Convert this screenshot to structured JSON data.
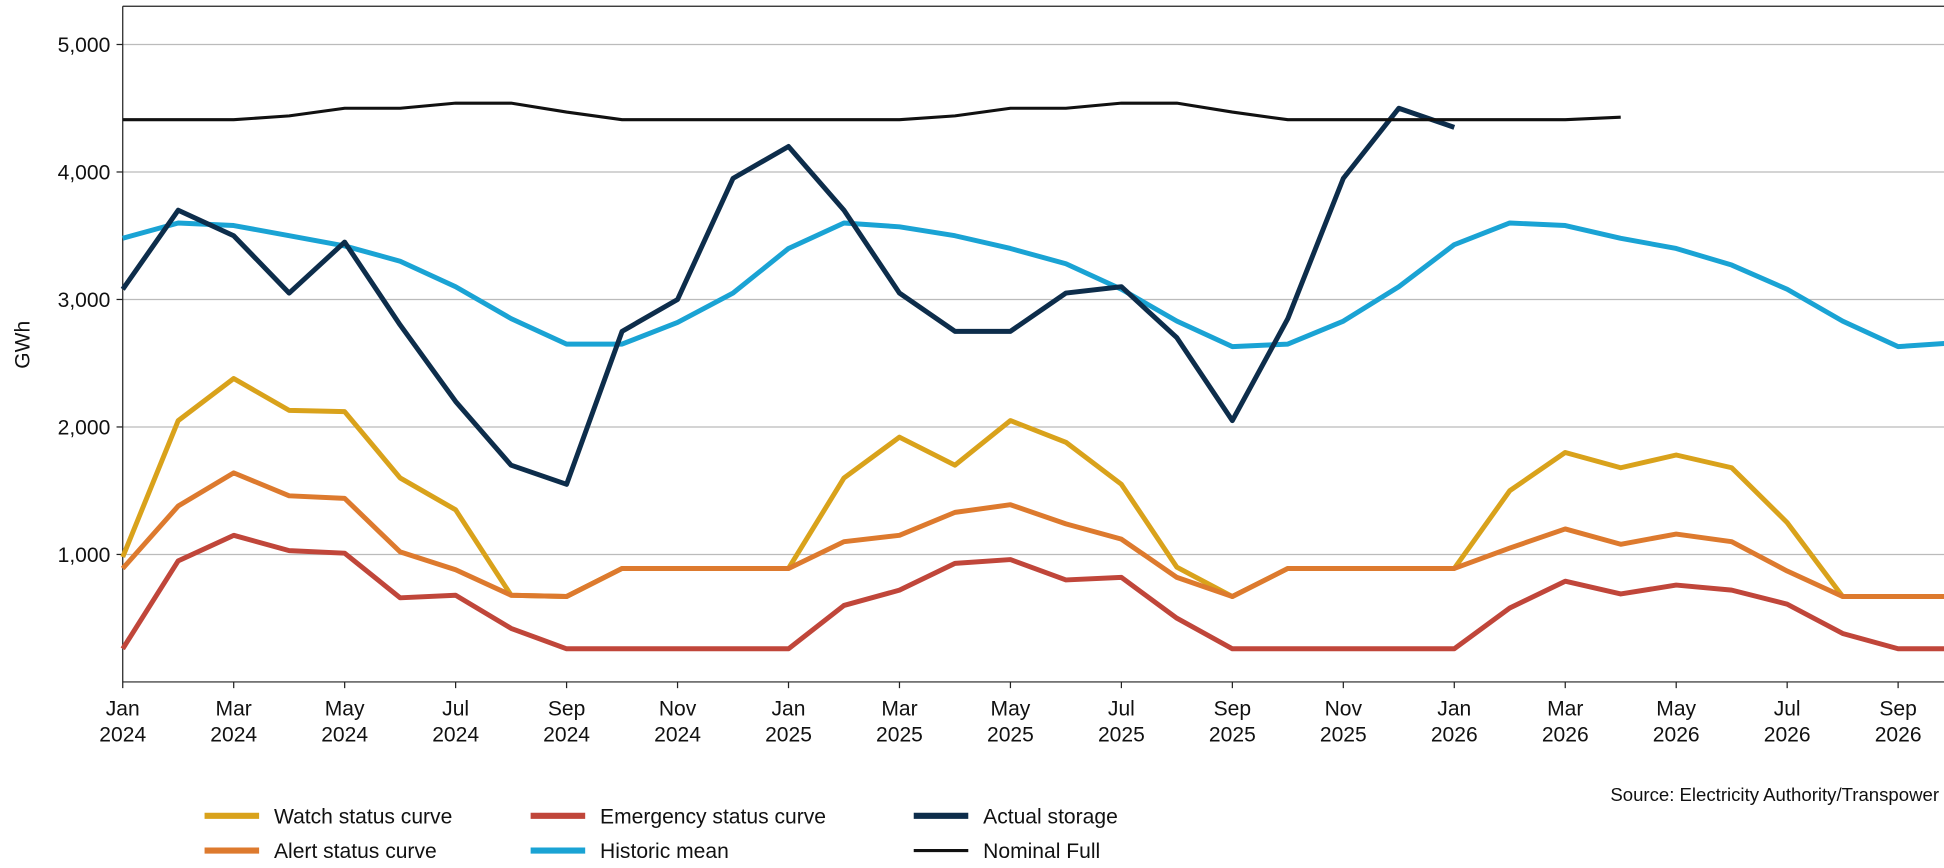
{
  "chart_data": {
    "type": "line",
    "y_label": "GWh",
    "source": "Source: Electricity Authority/Transpower",
    "x": [
      "2024-01",
      "2024-02",
      "2024-03",
      "2024-04",
      "2024-05",
      "2024-06",
      "2024-07",
      "2024-08",
      "2024-09",
      "2024-10",
      "2024-11",
      "2024-12",
      "2025-01",
      "2025-02",
      "2025-03",
      "2025-04",
      "2025-05",
      "2025-06",
      "2025-07",
      "2025-08",
      "2025-09",
      "2025-10",
      "2025-11",
      "2025-12",
      "2026-01",
      "2026-02",
      "2026-03",
      "2026-04",
      "2026-05",
      "2026-06",
      "2026-07",
      "2026-08",
      "2026-09",
      "2026-10"
    ],
    "xlim": [
      "2024-01",
      "2026-10"
    ],
    "xticks": [
      {
        "value": "2024-01",
        "label": "Jan 2024"
      },
      {
        "value": "2024-03",
        "label": "Mar 2024"
      },
      {
        "value": "2024-05",
        "label": "May 2024"
      },
      {
        "value": "2024-07",
        "label": "Jul 2024"
      },
      {
        "value": "2024-09",
        "label": "Sep 2024"
      },
      {
        "value": "2024-11",
        "label": "Nov 2024"
      },
      {
        "value": "2025-01",
        "label": "Jan 2025"
      },
      {
        "value": "2025-03",
        "label": "Mar 2025"
      },
      {
        "value": "2025-05",
        "label": "May 2025"
      },
      {
        "value": "2025-07",
        "label": "Jul 2025"
      },
      {
        "value": "2025-09",
        "label": "Sep 2025"
      },
      {
        "value": "2025-11",
        "label": "Nov 2025"
      },
      {
        "value": "2026-01",
        "label": "Jan 2026"
      },
      {
        "value": "2026-03",
        "label": "Mar 2026"
      },
      {
        "value": "2026-05",
        "label": "May 2026"
      },
      {
        "value": "2026-07",
        "label": "Jul 2026"
      },
      {
        "value": "2026-09",
        "label": "Sep 2026"
      }
    ],
    "ylim": [
      0,
      5300
    ],
    "yticks": [
      {
        "value": 1000,
        "label": "1,000"
      },
      {
        "value": 2000,
        "label": "2,000"
      },
      {
        "value": 3000,
        "label": "3,000"
      },
      {
        "value": 4000,
        "label": "4,000"
      },
      {
        "value": 5000,
        "label": "5,000"
      }
    ],
    "grid": true,
    "legend": "bottom",
    "series": [
      {
        "name": "Watch status curve",
        "color": "#d9a21b",
        "values": [
          980,
          2050,
          2380,
          2130,
          2120,
          1600,
          1350,
          680,
          670,
          890,
          890,
          890,
          890,
          1600,
          1920,
          1700,
          2050,
          1880,
          1550,
          900,
          670,
          890,
          890,
          890,
          890,
          1500,
          1800,
          1680,
          1780,
          1680,
          1250,
          670,
          670,
          670
        ]
      },
      {
        "name": "Alert status curve",
        "color": "#dd7a2e",
        "values": [
          890,
          1380,
          1640,
          1460,
          1440,
          1020,
          880,
          680,
          670,
          890,
          890,
          890,
          890,
          1100,
          1150,
          1330,
          1390,
          1240,
          1120,
          820,
          670,
          890,
          890,
          890,
          890,
          1050,
          1200,
          1080,
          1160,
          1100,
          870,
          670,
          670,
          670
        ]
      },
      {
        "name": "Emergency status curve",
        "color": "#c0463a",
        "values": [
          260,
          950,
          1150,
          1030,
          1010,
          660,
          680,
          420,
          260,
          260,
          260,
          260,
          260,
          600,
          720,
          930,
          960,
          800,
          820,
          500,
          260,
          260,
          260,
          260,
          260,
          580,
          790,
          690,
          760,
          720,
          610,
          380,
          260,
          260
        ]
      },
      {
        "name": "Historic mean",
        "color": "#1aa3d4",
        "values": [
          3480,
          3600,
          3580,
          3500,
          3420,
          3300,
          3100,
          2850,
          2650,
          2650,
          2820,
          3050,
          3400,
          3600,
          3570,
          3500,
          3400,
          3280,
          3080,
          2830,
          2630,
          2650,
          2830,
          3100,
          3430,
          3600,
          3580,
          3480,
          3400,
          3270,
          3080,
          2830,
          2630,
          2660
        ]
      },
      {
        "name": "Actual storage",
        "color": "#0d2d4b",
        "values": [
          3080,
          3700,
          3500,
          3050,
          3450,
          2800,
          2200,
          1700,
          1550,
          2750,
          3000,
          3950,
          4200,
          3700,
          3050,
          2750,
          2750,
          3050,
          3100,
          2700,
          2050,
          2850,
          3950,
          4500,
          4350,
          null,
          null,
          null,
          null,
          null,
          null,
          null,
          null,
          null
        ]
      },
      {
        "name": "Nominal Full",
        "color": "#111111",
        "values": [
          4410,
          4410,
          4410,
          4440,
          4500,
          4500,
          4540,
          4540,
          4470,
          4410,
          4410,
          4410,
          4410,
          4410,
          4410,
          4440,
          4500,
          4500,
          4540,
          4540,
          4470,
          4410,
          4410,
          4410,
          4410,
          4410,
          4410,
          4430,
          null,
          null,
          null,
          null,
          null,
          null
        ]
      }
    ]
  }
}
